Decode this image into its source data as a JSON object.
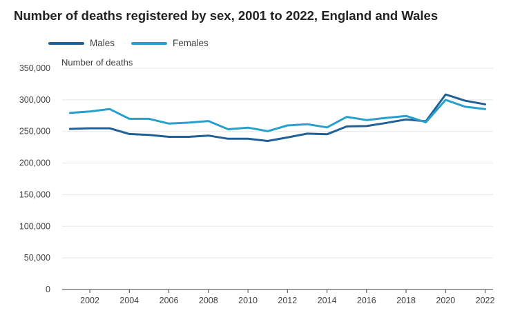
{
  "title": "Number of deaths registered by sex, 2001 to 2022, England and Wales",
  "legend": [
    {
      "name": "Males",
      "color": "#206095"
    },
    {
      "name": "Females",
      "color": "#27a0cc"
    }
  ],
  "chart_data": {
    "type": "line",
    "title": "Number of deaths registered by sex, 2001 to 2022, England and Wales",
    "xlabel": "",
    "ylabel": "Number of deaths",
    "x": [
      2001,
      2002,
      2003,
      2004,
      2005,
      2006,
      2007,
      2008,
      2009,
      2010,
      2011,
      2012,
      2013,
      2014,
      2015,
      2016,
      2017,
      2018,
      2019,
      2020,
      2021,
      2022
    ],
    "xticks": [
      2002,
      2004,
      2006,
      2008,
      2010,
      2012,
      2014,
      2016,
      2018,
      2020,
      2022
    ],
    "ylim": [
      0,
      350000
    ],
    "yticks": [
      0,
      50000,
      100000,
      150000,
      200000,
      250000,
      300000,
      350000
    ],
    "ytick_labels": [
      "0",
      "50,000",
      "100,000",
      "150,000",
      "200,000",
      "250,000",
      "300,000",
      "350,000"
    ],
    "grid": true,
    "legend_position": "top-left",
    "series": [
      {
        "name": "Males",
        "color": "#206095",
        "values": [
          254000,
          255000,
          255000,
          246000,
          244500,
          241500,
          241500,
          243500,
          238500,
          238500,
          235000,
          240500,
          246500,
          245500,
          258000,
          258500,
          263500,
          269000,
          266000,
          308500,
          298500,
          293000
        ]
      },
      {
        "name": "Females",
        "color": "#27a0cc",
        "values": [
          279500,
          281500,
          285500,
          270000,
          270000,
          262500,
          264000,
          266500,
          253500,
          256000,
          250500,
          259500,
          261500,
          256500,
          273000,
          268000,
          271500,
          274500,
          264500,
          300000,
          289000,
          285500
        ]
      }
    ]
  }
}
